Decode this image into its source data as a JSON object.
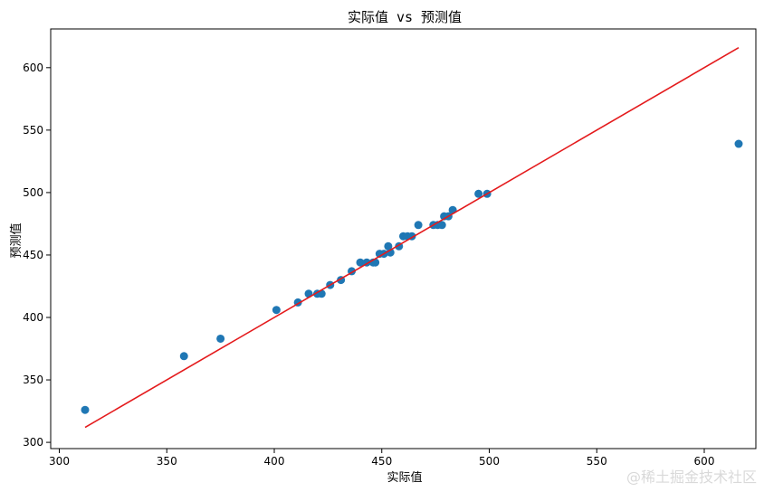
{
  "chart_data": {
    "type": "scatter",
    "title": "实际值 vs 预测值",
    "xlabel": "实际值",
    "ylabel": "预测值",
    "xlim": [
      296,
      624
    ],
    "ylim": [
      295,
      631
    ],
    "xticks": [
      300,
      350,
      400,
      450,
      500,
      550,
      600
    ],
    "yticks": [
      300,
      350,
      400,
      450,
      500,
      550,
      600
    ],
    "grid": false,
    "colors": {
      "points": "#1f77b4",
      "line": "#e41a1c"
    },
    "series": [
      {
        "type": "scatter",
        "x": [
          312,
          358,
          375,
          401,
          411,
          416,
          420,
          422,
          426,
          431,
          436,
          440,
          443,
          446,
          447,
          449,
          451,
          453,
          454,
          458,
          460,
          462,
          464,
          467,
          474,
          476,
          478,
          479,
          481,
          483,
          495,
          499,
          616
        ],
        "y": [
          326,
          369,
          383,
          406,
          412,
          419,
          419,
          419,
          426,
          430,
          437,
          444,
          444,
          444,
          444,
          451,
          451,
          457,
          452,
          457,
          465,
          465,
          465,
          474,
          474,
          474,
          474,
          481,
          481,
          486,
          499,
          499,
          539
        ]
      },
      {
        "type": "line",
        "x": [
          312,
          616
        ],
        "y": [
          312,
          616
        ]
      }
    ]
  },
  "watermark": "@稀土掘金技术社区"
}
